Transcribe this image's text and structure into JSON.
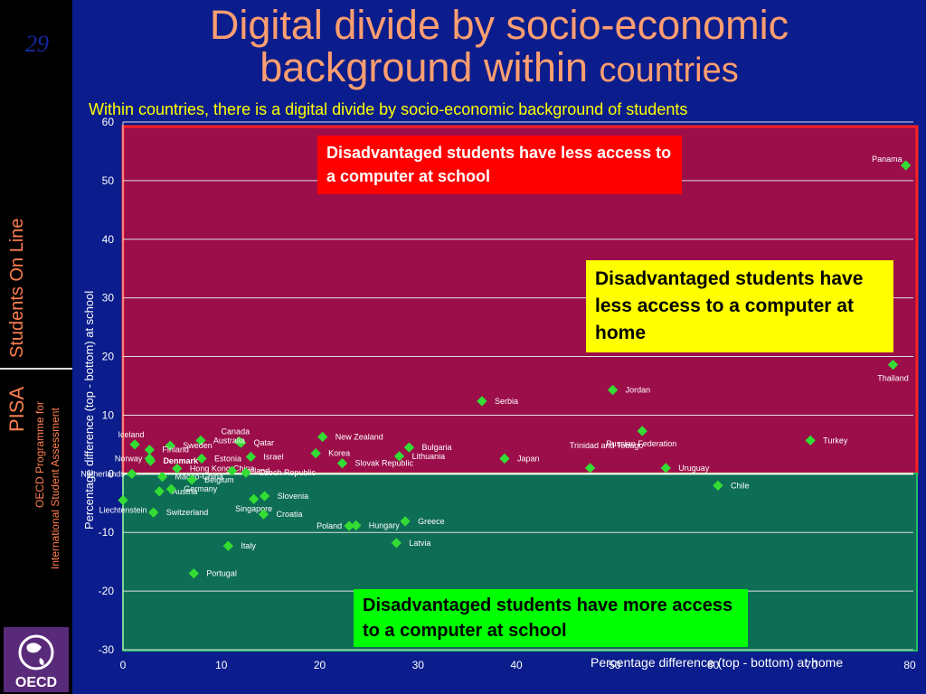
{
  "slide": {
    "number": "29",
    "title_line1": "Digital divide by socio-economic",
    "title_line2": "background within",
    "title_line2_small": "countries",
    "subtitle": "Within countries, there is a digital divide by socio-economic background of students"
  },
  "sidebar": {
    "students_online": "Students On Line",
    "pisa": "PISA",
    "oecd_programme": "OECD Programme for",
    "oecd_assessment": "International Student Assessment",
    "logo_text": "OECD"
  },
  "callouts": {
    "school_less": "Disadvantaged students have less access to a computer at school",
    "home_less": "Disadvantaged students have less access to a computer at home",
    "school_more": "Disadvantaged students have more access to a computer at school"
  },
  "colors": {
    "background": "#0b1d8c",
    "upper_region": "#9b0e4a",
    "lower_region": "#0e6d55",
    "marker": "#33dd33",
    "title": "#ff9e70",
    "subtitle": "#ffff00"
  },
  "chart_data": {
    "type": "scatter",
    "xlabel": "Percentage difference (top - bottom) at home",
    "ylabel": "Percentage difference (top - bottom) at school",
    "xlim": [
      0,
      80
    ],
    "ylim": [
      -30,
      60
    ],
    "x_ticks": [
      0,
      10,
      20,
      30,
      40,
      50,
      60,
      70,
      80
    ],
    "y_ticks": [
      -30,
      -20,
      -10,
      0,
      10,
      20,
      30,
      40,
      50,
      60
    ],
    "grid": "horizontal",
    "points": [
      {
        "label": "Panama",
        "x": 79.6,
        "y": 52.6
      },
      {
        "label": "Thailand",
        "x": 78.3,
        "y": 18.6
      },
      {
        "label": "Jordan",
        "x": 49.8,
        "y": 14.3
      },
      {
        "label": "Serbia",
        "x": 36.5,
        "y": 12.4
      },
      {
        "label": "Russian Federation",
        "x": 52.8,
        "y": 7.3
      },
      {
        "label": "Turkey",
        "x": 69.9,
        "y": 5.7
      },
      {
        "label": "Uruguay",
        "x": 55.2,
        "y": 1.0
      },
      {
        "label": "Trinidad and Tobago",
        "x": 47.5,
        "y": 1.0
      },
      {
        "label": "Japan",
        "x": 38.8,
        "y": 2.6
      },
      {
        "label": "Chile",
        "x": 60.5,
        "y": -2.0
      },
      {
        "label": "New Zealand",
        "x": 20.3,
        "y": 6.3
      },
      {
        "label": "Bulgaria",
        "x": 29.1,
        "y": 4.5
      },
      {
        "label": "Lithuania",
        "x": 28.1,
        "y": 3.0
      },
      {
        "label": "Korea",
        "x": 19.6,
        "y": 3.5
      },
      {
        "label": "Slovak Republic",
        "x": 22.3,
        "y": 1.8
      },
      {
        "label": "Canada",
        "x": 11.8,
        "y": 5.5
      },
      {
        "label": "Qatar",
        "x": 12.0,
        "y": 5.3
      },
      {
        "label": "Australia",
        "x": 7.9,
        "y": 5.7
      },
      {
        "label": "Iceland",
        "x": 1.2,
        "y": 5.0
      },
      {
        "label": "Sweden",
        "x": 4.8,
        "y": 4.8
      },
      {
        "label": "Finland",
        "x": 2.7,
        "y": 4.1
      },
      {
        "label": "Israel",
        "x": 13.0,
        "y": 2.9
      },
      {
        "label": "Estonia",
        "x": 8.0,
        "y": 2.6
      },
      {
        "label": "Denmark",
        "x": 2.8,
        "y": 2.2
      },
      {
        "label": "Norway",
        "x": 2.7,
        "y": 2.6
      },
      {
        "label": "Hong Kong-China",
        "x": 5.5,
        "y": 0.9
      },
      {
        "label": "Ireland",
        "x": 11.1,
        "y": 0.5
      },
      {
        "label": "Czech Republic",
        "x": 12.5,
        "y": 0.2
      },
      {
        "label": "Macao-China",
        "x": 4.0,
        "y": -0.5
      },
      {
        "label": "Netherlands",
        "x": 0.9,
        "y": 0.0
      },
      {
        "label": "Belgium",
        "x": 7.0,
        "y": -1.0
      },
      {
        "label": "Austria",
        "x": 3.7,
        "y": -3.0
      },
      {
        "label": "Germany",
        "x": 4.9,
        "y": -2.6
      },
      {
        "label": "Liechtenstein",
        "x": 0.0,
        "y": -4.5
      },
      {
        "label": "Slovenia",
        "x": 14.4,
        "y": -3.8
      },
      {
        "label": "Singapore",
        "x": 13.3,
        "y": -4.3
      },
      {
        "label": "Switzerland",
        "x": 3.1,
        "y": -6.6
      },
      {
        "label": "Croatia",
        "x": 14.3,
        "y": -6.9
      },
      {
        "label": "Greece",
        "x": 28.7,
        "y": -8.1
      },
      {
        "label": "Poland",
        "x": 23.0,
        "y": -8.9
      },
      {
        "label": "Hungary",
        "x": 23.7,
        "y": -8.8
      },
      {
        "label": "Latvia",
        "x": 27.8,
        "y": -11.8
      },
      {
        "label": "Italy",
        "x": 10.7,
        "y": -12.3
      },
      {
        "label": "Portugal",
        "x": 7.2,
        "y": -17.0
      }
    ]
  }
}
